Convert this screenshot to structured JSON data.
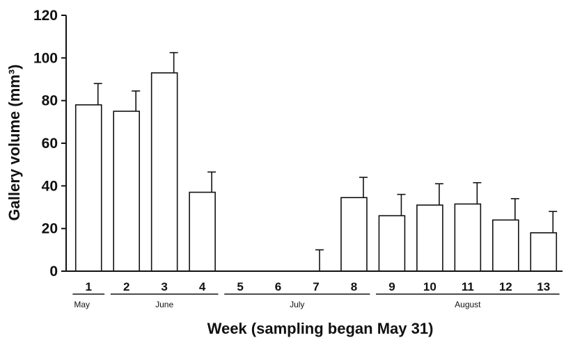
{
  "chart_data": {
    "type": "bar",
    "xlabel": "Week (sampling began May 31)",
    "ylabel": "Gallery volume (mm³)",
    "ylim": [
      0,
      120
    ],
    "yticks": [
      "0",
      "20",
      "40",
      "60",
      "80",
      "100",
      "120"
    ],
    "categories": [
      "1",
      "2",
      "3",
      "4",
      "5",
      "6",
      "7",
      "8",
      "9",
      "10",
      "11",
      "12",
      "13"
    ],
    "values": [
      78,
      75,
      93,
      37,
      0,
      0,
      0,
      34.5,
      26,
      31,
      31.5,
      24,
      18
    ],
    "error_upper": [
      10,
      9.5,
      9.5,
      9.5,
      0,
      0,
      10,
      9.5,
      10,
      10,
      10,
      10,
      10
    ],
    "months": [
      "May",
      "June",
      "July",
      "August"
    ],
    "bar_color": "#ffffff",
    "line_color": "#111111",
    "grid": false
  }
}
